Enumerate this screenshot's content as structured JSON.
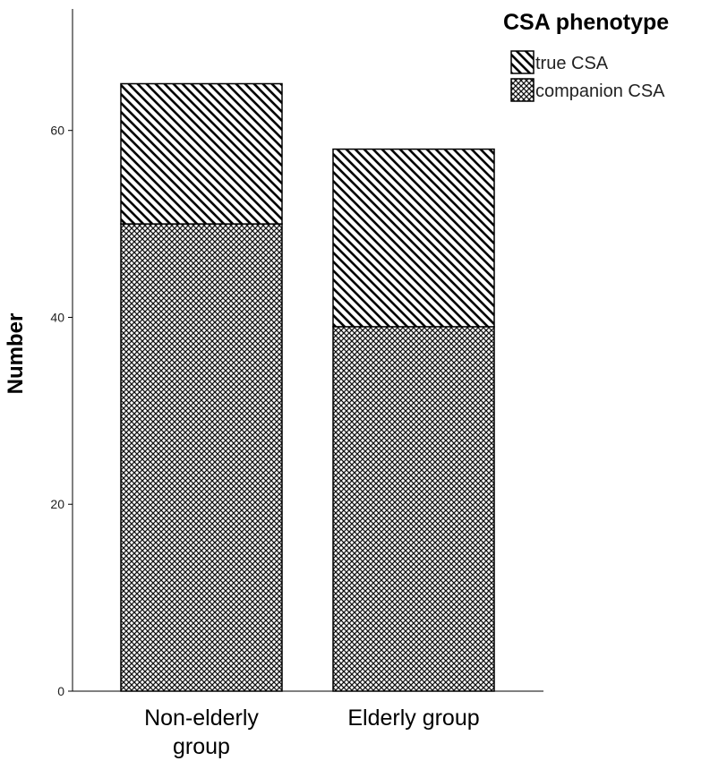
{
  "chart_data": {
    "type": "bar",
    "stacked": true,
    "categories": [
      "Non-elderly group",
      "Elderly group"
    ],
    "category_lines": [
      [
        "Non-elderly",
        "group"
      ],
      [
        "Elderly group"
      ]
    ],
    "series": [
      {
        "name": "companion CSA",
        "values": [
          50,
          39
        ],
        "pattern": "crosshatch"
      },
      {
        "name": "true CSA",
        "values": [
          15,
          19
        ],
        "pattern": "diagonal"
      }
    ],
    "totals": [
      65,
      58
    ],
    "ylabel": "Number",
    "xlabel": "",
    "ylim": [
      0,
      73
    ],
    "yticks": [
      0,
      20,
      40,
      60
    ],
    "grid": false,
    "legend": {
      "title": "CSA phenotype",
      "position": "top-right",
      "items": [
        "true CSA",
        "companion CSA"
      ]
    }
  }
}
